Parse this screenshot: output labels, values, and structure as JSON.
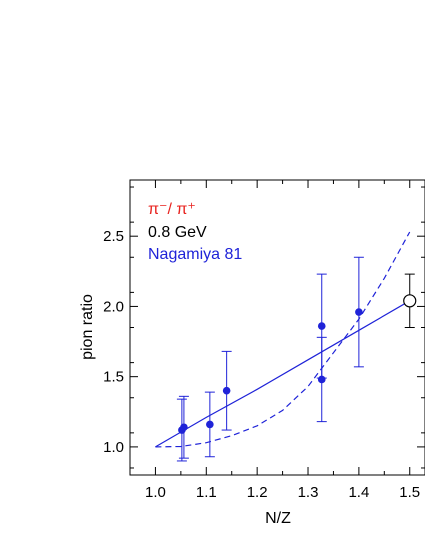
{
  "chart_data": {
    "type": "scatter",
    "xlabel": "N/Z",
    "ylabel": "pion ratio",
    "xlim": [
      0.95,
      1.53
    ],
    "ylim": [
      0.8,
      2.9
    ],
    "x_ticks": [
      1.0,
      1.1,
      1.2,
      1.3,
      1.4,
      1.5
    ],
    "x_tick_labels": [
      "1.0",
      "1.1",
      "1.2",
      "1.3",
      "1.4",
      "1.5"
    ],
    "y_ticks": [
      1.0,
      1.5,
      2.0,
      2.5
    ],
    "y_tick_labels": [
      "1.0",
      "1.5",
      "2.0",
      "2.5"
    ],
    "annotations": {
      "ratio_label": "π⁻/ π⁺",
      "energy_label": "0.8 GeV",
      "source_label": "Nagamiya 81"
    },
    "colors": {
      "ratio_label": "#e8231f",
      "energy_label": "#000000",
      "data": "#1f23d8",
      "open_point": "#000000"
    },
    "series": [
      {
        "marker": "filled-circle",
        "color": "#1f23d8",
        "points": [
          {
            "x": 1.052,
            "y": 1.12,
            "err": 0.22
          },
          {
            "x": 1.056,
            "y": 1.14,
            "err": 0.22
          },
          {
            "x": 1.107,
            "y": 1.16,
            "err": 0.23
          },
          {
            "x": 1.14,
            "y": 1.4,
            "err": 0.28
          },
          {
            "x": 1.327,
            "y": 1.86,
            "err": 0.37
          },
          {
            "x": 1.327,
            "y": 1.48,
            "err": 0.3
          },
          {
            "x": 1.4,
            "y": 1.96,
            "err": 0.39
          }
        ]
      },
      {
        "marker": "open-circle",
        "color": "#000000",
        "points": [
          {
            "x": 1.5,
            "y": 2.04,
            "err": 0.19
          }
        ]
      }
    ],
    "curves": [
      {
        "style": "solid",
        "color": "#1f23d8",
        "points": [
          [
            1.0,
            1.0
          ],
          [
            1.1,
            1.21
          ],
          [
            1.2,
            1.41
          ],
          [
            1.3,
            1.62
          ],
          [
            1.4,
            1.83
          ],
          [
            1.5,
            2.04
          ]
        ]
      },
      {
        "style": "dashed",
        "color": "#1f23d8",
        "points": [
          [
            1.0,
            1.0
          ],
          [
            1.05,
            1.003
          ],
          [
            1.1,
            1.03
          ],
          [
            1.15,
            1.08
          ],
          [
            1.2,
            1.15
          ],
          [
            1.25,
            1.26
          ],
          [
            1.3,
            1.43
          ],
          [
            1.35,
            1.67
          ],
          [
            1.4,
            1.91
          ],
          [
            1.45,
            2.2
          ],
          [
            1.5,
            2.53
          ]
        ]
      }
    ]
  }
}
